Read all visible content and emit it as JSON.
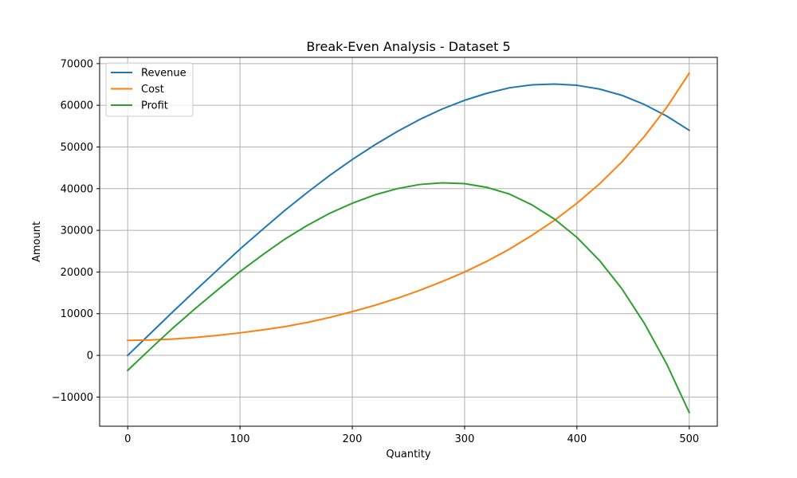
{
  "chart_data": {
    "type": "line",
    "title": "Break-Even Analysis - Dataset 5",
    "xlabel": "Quantity",
    "ylabel": "Amount",
    "xlim": [
      -25,
      525
    ],
    "ylim": [
      -17000,
      71500
    ],
    "xticks": [
      0,
      100,
      200,
      300,
      400,
      500
    ],
    "xtick_labels": [
      "0",
      "100",
      "200",
      "300",
      "400",
      "500"
    ],
    "yticks": [
      -10000,
      0,
      10000,
      20000,
      30000,
      40000,
      50000,
      60000,
      70000
    ],
    "ytick_labels": [
      "−10000",
      "0",
      "10000",
      "20000",
      "30000",
      "40000",
      "50000",
      "60000",
      "70000"
    ],
    "grid": true,
    "legend_position": "upper-left",
    "x": [
      0,
      20,
      40,
      60,
      80,
      100,
      120,
      140,
      160,
      180,
      200,
      220,
      240,
      260,
      280,
      300,
      320,
      340,
      360,
      380,
      400,
      420,
      440,
      460,
      480,
      500
    ],
    "series": [
      {
        "name": "Revenue",
        "color": "#1f77b4",
        "values": [
          0,
          5200,
          10400,
          15500,
          20500,
          25500,
          30200,
          34800,
          39100,
          43200,
          47000,
          50500,
          53700,
          56600,
          59100,
          61200,
          62900,
          64200,
          64900,
          65100,
          64800,
          63900,
          62400,
          60200,
          57400,
          54000
        ]
      },
      {
        "name": "Cost",
        "color": "#ff7f0e",
        "values": [
          3600,
          3700,
          3900,
          4300,
          4800,
          5400,
          6100,
          6900,
          7900,
          9100,
          10500,
          12000,
          13700,
          15600,
          17700,
          20000,
          22600,
          25500,
          28800,
          32400,
          36500,
          41100,
          46400,
          52500,
          59500,
          67700
        ]
      },
      {
        "name": "Profit",
        "color": "#2ca02c",
        "values": [
          -3600,
          1500,
          6500,
          11200,
          15700,
          20100,
          24100,
          27900,
          31200,
          34100,
          36500,
          38500,
          40000,
          41000,
          41400,
          41200,
          40300,
          38700,
          36100,
          32700,
          28300,
          22800,
          16000,
          7700,
          -2100,
          -13700
        ]
      }
    ]
  }
}
